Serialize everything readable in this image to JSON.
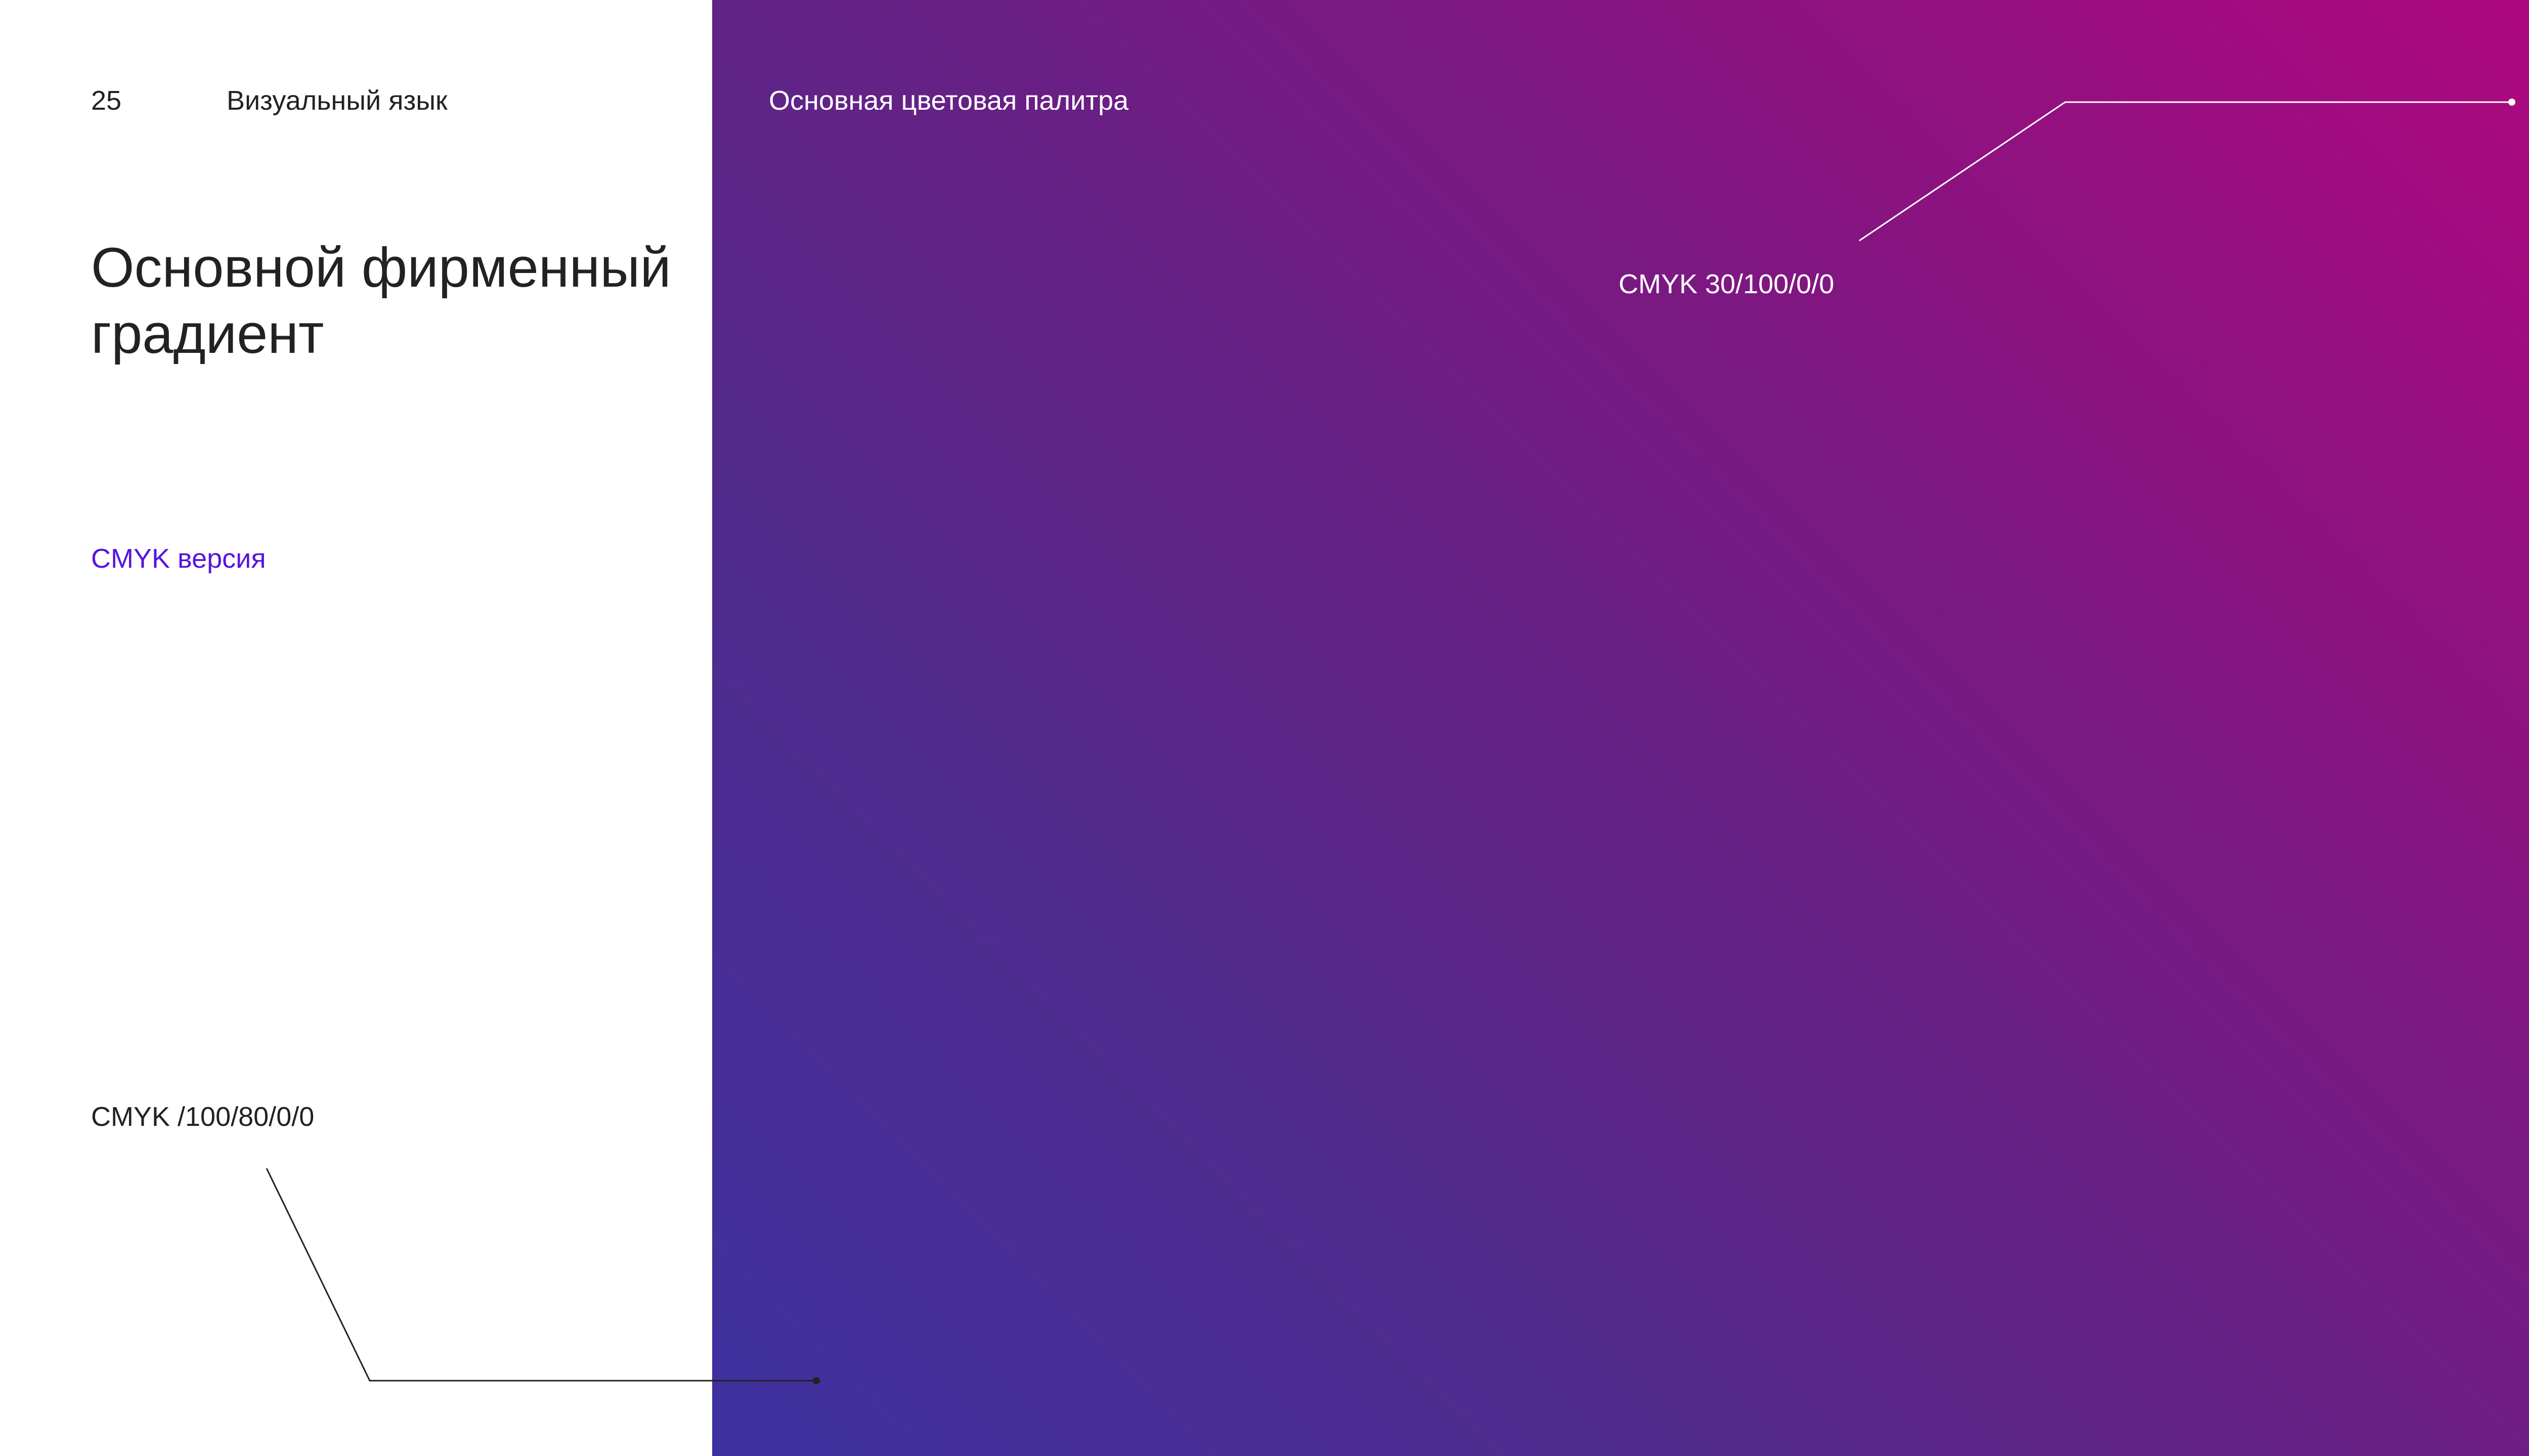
{
  "header": {
    "page_number": "25",
    "section": "Визуальный язык",
    "panel_title": "Основная цветовая палитра"
  },
  "main": {
    "title": "Основной фирменный градиент",
    "version_label": "CMYK версия"
  },
  "swatches": {
    "start_label": "CMYK /100/80/0/0",
    "end_label": "CMYK 30/100/0/0"
  },
  "colors": {
    "gradient_start": "#3d319f",
    "gradient_end": "#b1077f",
    "accent": "#5614e0",
    "text": "#222222"
  }
}
